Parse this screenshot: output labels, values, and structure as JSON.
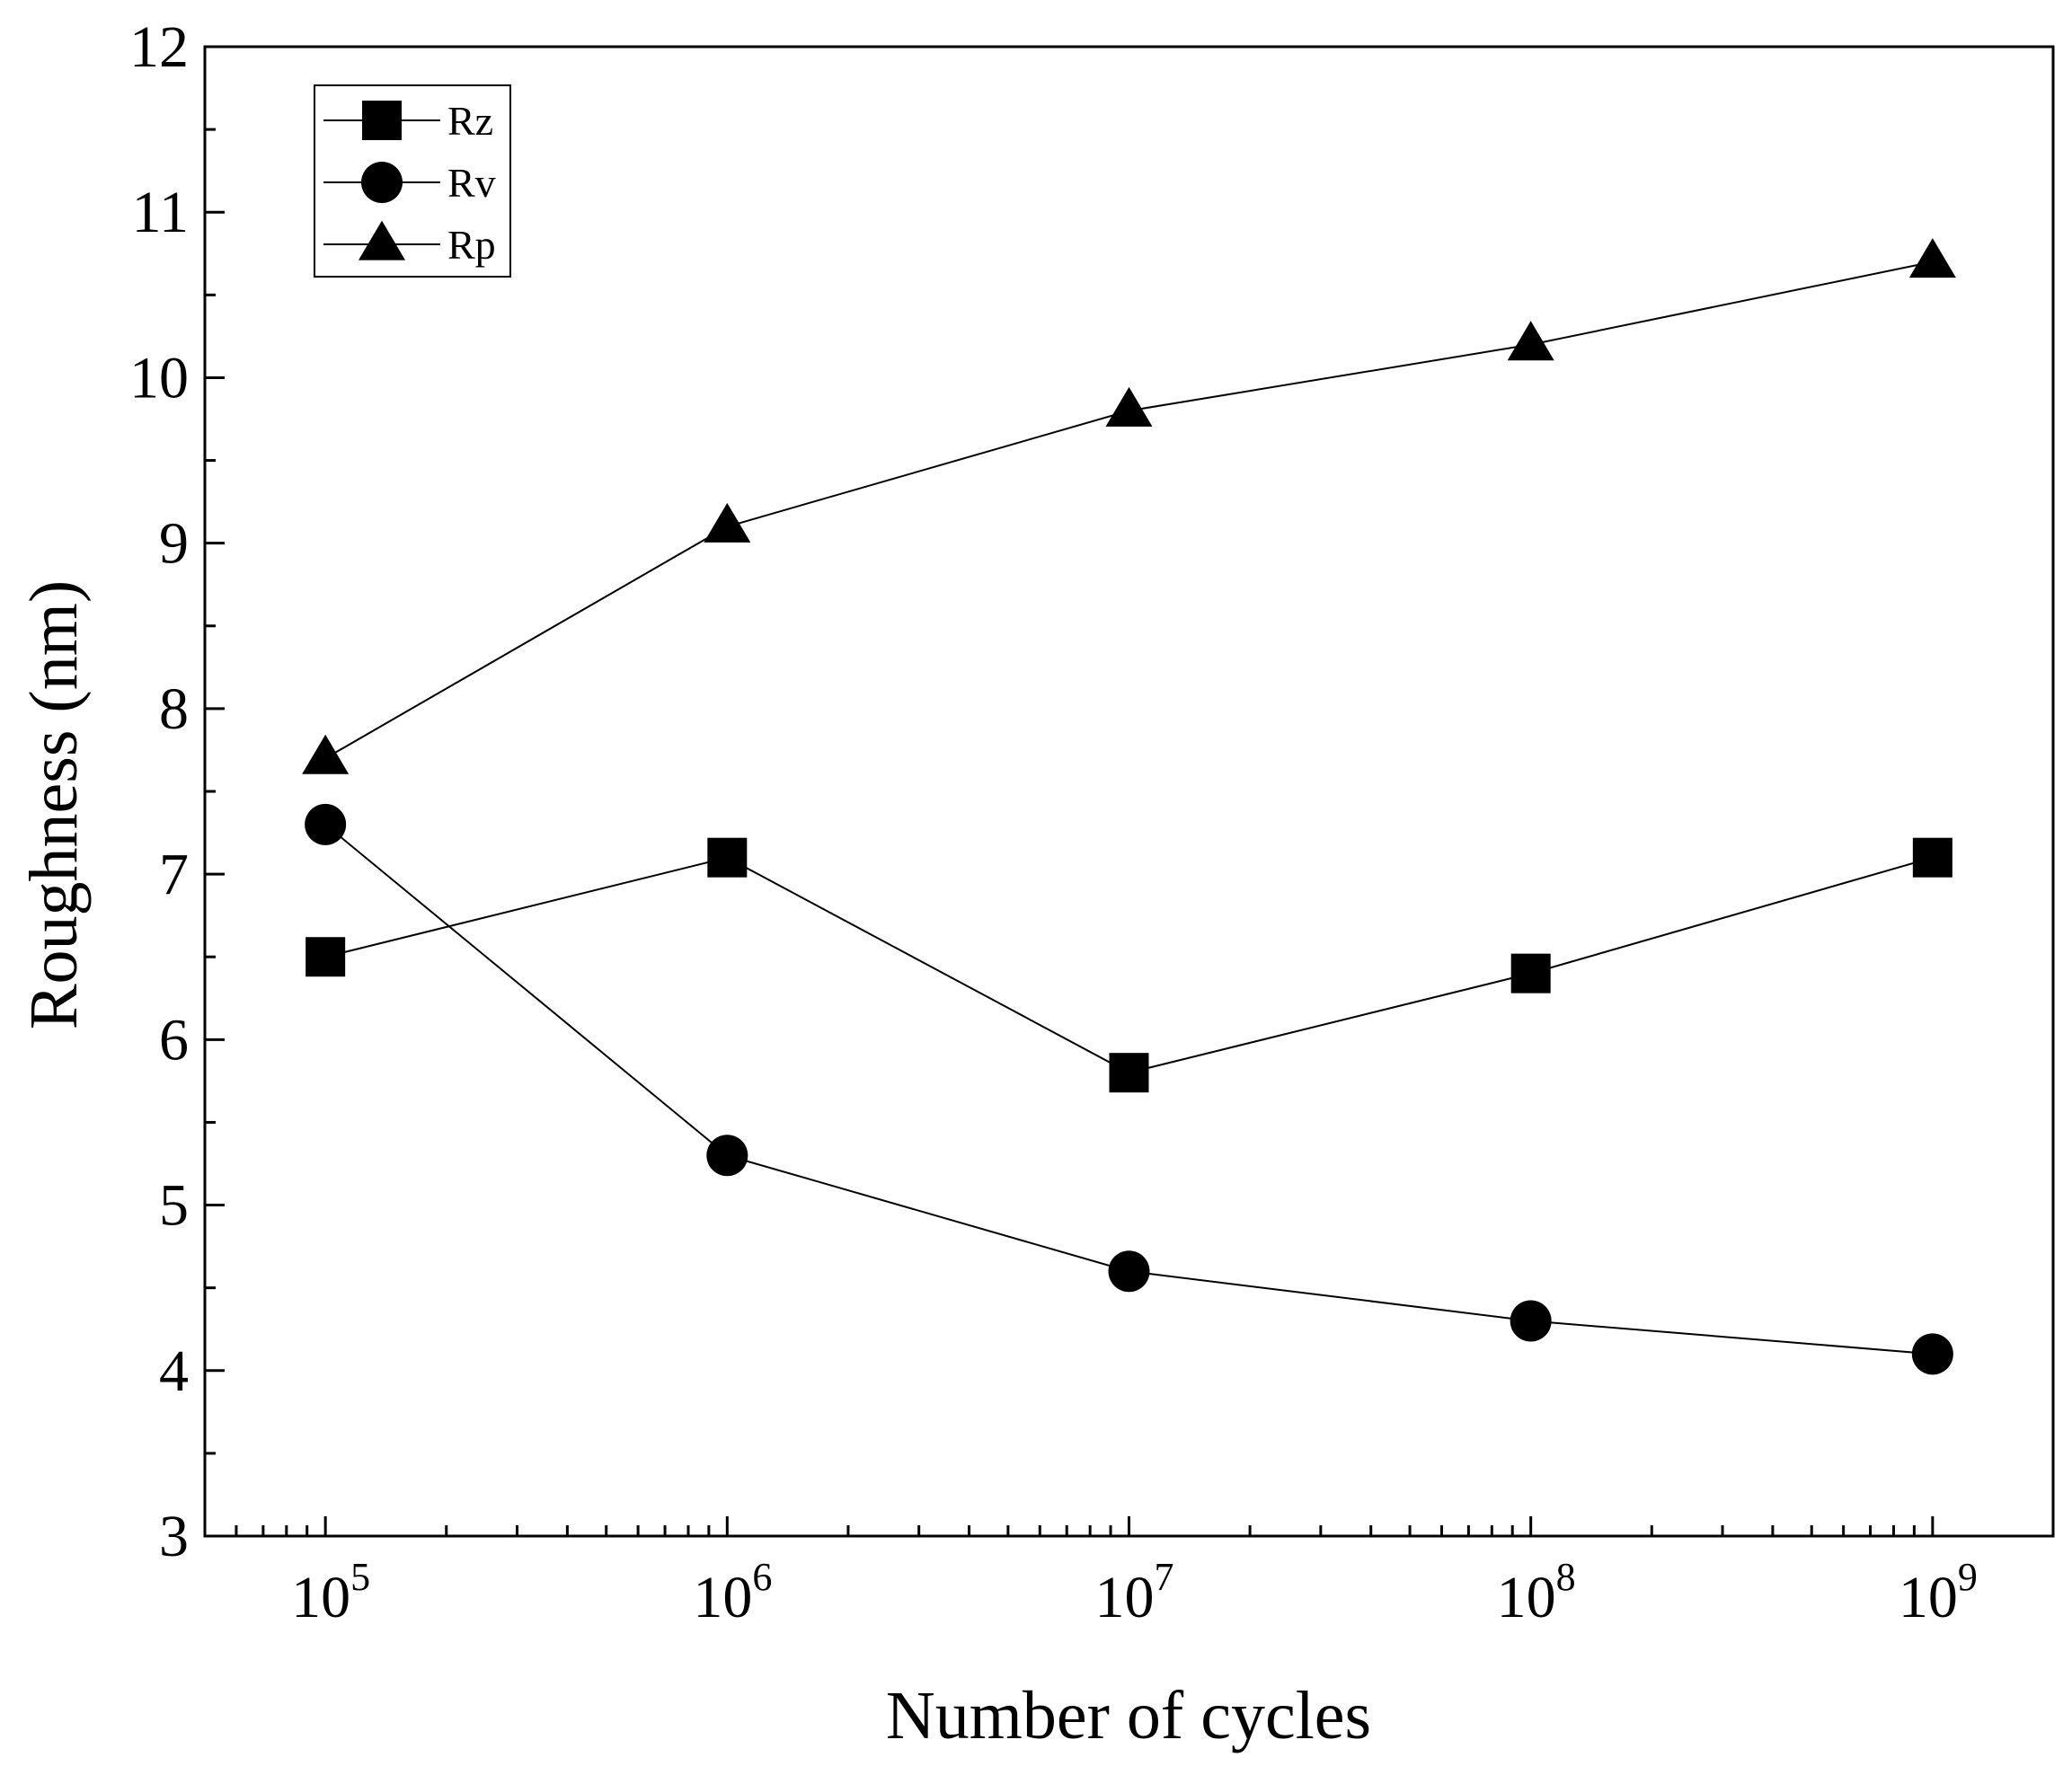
{
  "chart_data": {
    "type": "line",
    "title": "",
    "xlabel": "Number of cycles",
    "ylabel": "Roughness (nm)",
    "xscale": "log",
    "xlim_exp": [
      4.7,
      9.3
    ],
    "ylim": [
      3,
      12
    ],
    "grid": false,
    "legend_position": "top-left",
    "x": [
      100000,
      1000000,
      10000000,
      100000000,
      1000000000
    ],
    "x_tick_labels": [
      {
        "base": "10",
        "exp": "5"
      },
      {
        "base": "10",
        "exp": "6"
      },
      {
        "base": "10",
        "exp": "7"
      },
      {
        "base": "10",
        "exp": "8"
      },
      {
        "base": "10",
        "exp": "9"
      }
    ],
    "y_ticks": [
      3,
      4,
      5,
      6,
      7,
      8,
      9,
      10,
      11,
      12
    ],
    "y_tick_labels": [
      "3",
      "4",
      "5",
      "6",
      "7",
      "8",
      "9",
      "10",
      "11",
      "12"
    ],
    "series": [
      {
        "name": "Rz",
        "marker": "square",
        "values": [
          6.5,
          7.1,
          5.8,
          6.4,
          7.1
        ]
      },
      {
        "name": "Rv",
        "marker": "circle",
        "values": [
          7.3,
          5.3,
          4.6,
          4.3,
          4.1
        ]
      },
      {
        "name": "Rp",
        "marker": "triangle",
        "values": [
          7.7,
          9.1,
          9.8,
          10.2,
          10.7
        ]
      }
    ],
    "colors": {
      "line": "#000000",
      "marker": "#000000",
      "background": "#ffffff"
    }
  }
}
